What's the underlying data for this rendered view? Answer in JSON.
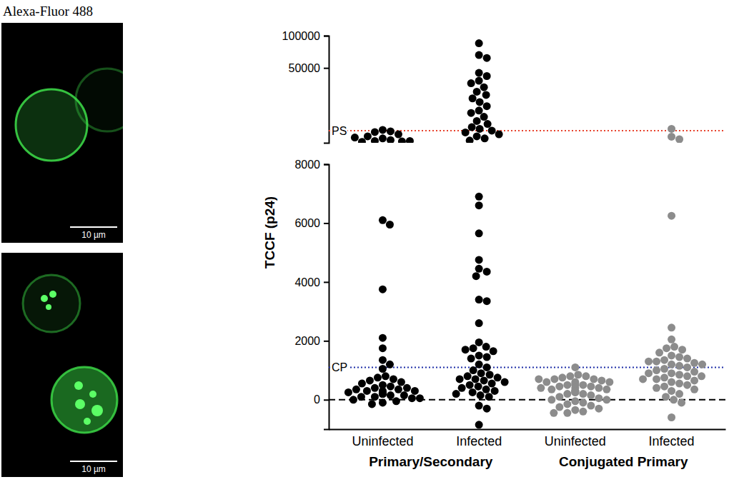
{
  "images": {
    "title": "Alexa-Fluor 488",
    "scale_bars": [
      "10 µm",
      "10 µm"
    ]
  },
  "chart_data": [
    {
      "type": "strip",
      "categories": [
        null,
        null,
        null,
        null
      ],
      "log": "y",
      "ylim": [
        10000,
        100000
      ],
      "yticks": [
        50000,
        100000
      ],
      "tick_labels": "y",
      "colors": [
        "#000000",
        "#000000",
        "#8c8c8c",
        "#8c8c8c"
      ],
      "reference_lines": [
        {
          "label": "PS",
          "value": 13000,
          "color": "#e8432e",
          "line_style": "dotted"
        }
      ],
      "values": [
        [
          13200,
          12800,
          12600,
          12000,
          11500,
          11000,
          10600,
          10400,
          10300,
          10200,
          10400,
          11200
        ],
        [
          85000,
          66000,
          62000,
          45000,
          42000,
          38000,
          36000,
          33000,
          30000,
          28000,
          26000,
          24000,
          22000,
          20000,
          19000,
          17500,
          16000,
          15000,
          14000,
          13500,
          13000,
          12500,
          12000,
          11500,
          11000,
          10500
        ],
        [],
        [
          13500,
          11400,
          10800
        ]
      ]
    },
    {
      "type": "strip",
      "categories": [
        "Uninfected",
        "Infected",
        "Uninfected",
        "Infected"
      ],
      "x_groups": [
        "Primary/Secondary",
        "Conjugated Primary"
      ],
      "ylabel": "TCCF (p24)",
      "ylim": [
        -1000,
        8000
      ],
      "yticks": [
        0,
        2000,
        4000,
        6000,
        8000
      ],
      "colors": [
        "#000000",
        "#000000",
        "#8c8c8c",
        "#8c8c8c"
      ],
      "reference_lines": [
        {
          "label": "CP",
          "value": 1100,
          "color": "#1f2fa8",
          "line_style": "dotted"
        },
        {
          "value": 0,
          "color": "#000000",
          "line_style": "dashed"
        }
      ],
      "values": [
        [
          6100,
          5950,
          3750,
          2100,
          1750,
          1350,
          1200,
          1050,
          800,
          750,
          700,
          650,
          600,
          550,
          500,
          450,
          400,
          400,
          350,
          350,
          300,
          300,
          250,
          250,
          200,
          200,
          150,
          150,
          100,
          100,
          50,
          50,
          0,
          -50,
          -100,
          -150,
          200,
          300
        ],
        [
          6900,
          6600,
          5650,
          4750,
          4450,
          4350,
          4200,
          3400,
          3350,
          2600,
          1950,
          1800,
          1750,
          1700,
          1650,
          1500,
          1450,
          1400,
          1200,
          1100,
          1000,
          900,
          850,
          800,
          750,
          700,
          700,
          650,
          600,
          550,
          500,
          450,
          400,
          350,
          300,
          250,
          200,
          150,
          100,
          -200,
          -300,
          -850
        ],
        [
          1100,
          850,
          800,
          800,
          750,
          700,
          700,
          650,
          600,
          600,
          550,
          500,
          500,
          450,
          450,
          400,
          400,
          350,
          350,
          300,
          300,
          250,
          250,
          200,
          200,
          150,
          100,
          50,
          0,
          0,
          -50,
          -100,
          -150,
          -200,
          -250,
          -300,
          -350,
          -400,
          -450,
          -450,
          700,
          600,
          500,
          400,
          300
        ],
        [
          6250,
          2450,
          2050,
          1800,
          1750,
          1700,
          1600,
          1500,
          1450,
          1400,
          1350,
          1300,
          1250,
          1200,
          1150,
          1100,
          1050,
          1000,
          950,
          900,
          850,
          800,
          750,
          700,
          650,
          600,
          550,
          500,
          450,
          400,
          350,
          300,
          200,
          100,
          0,
          -100,
          -600,
          1300,
          1200,
          900,
          800,
          700
        ]
      ]
    }
  ]
}
